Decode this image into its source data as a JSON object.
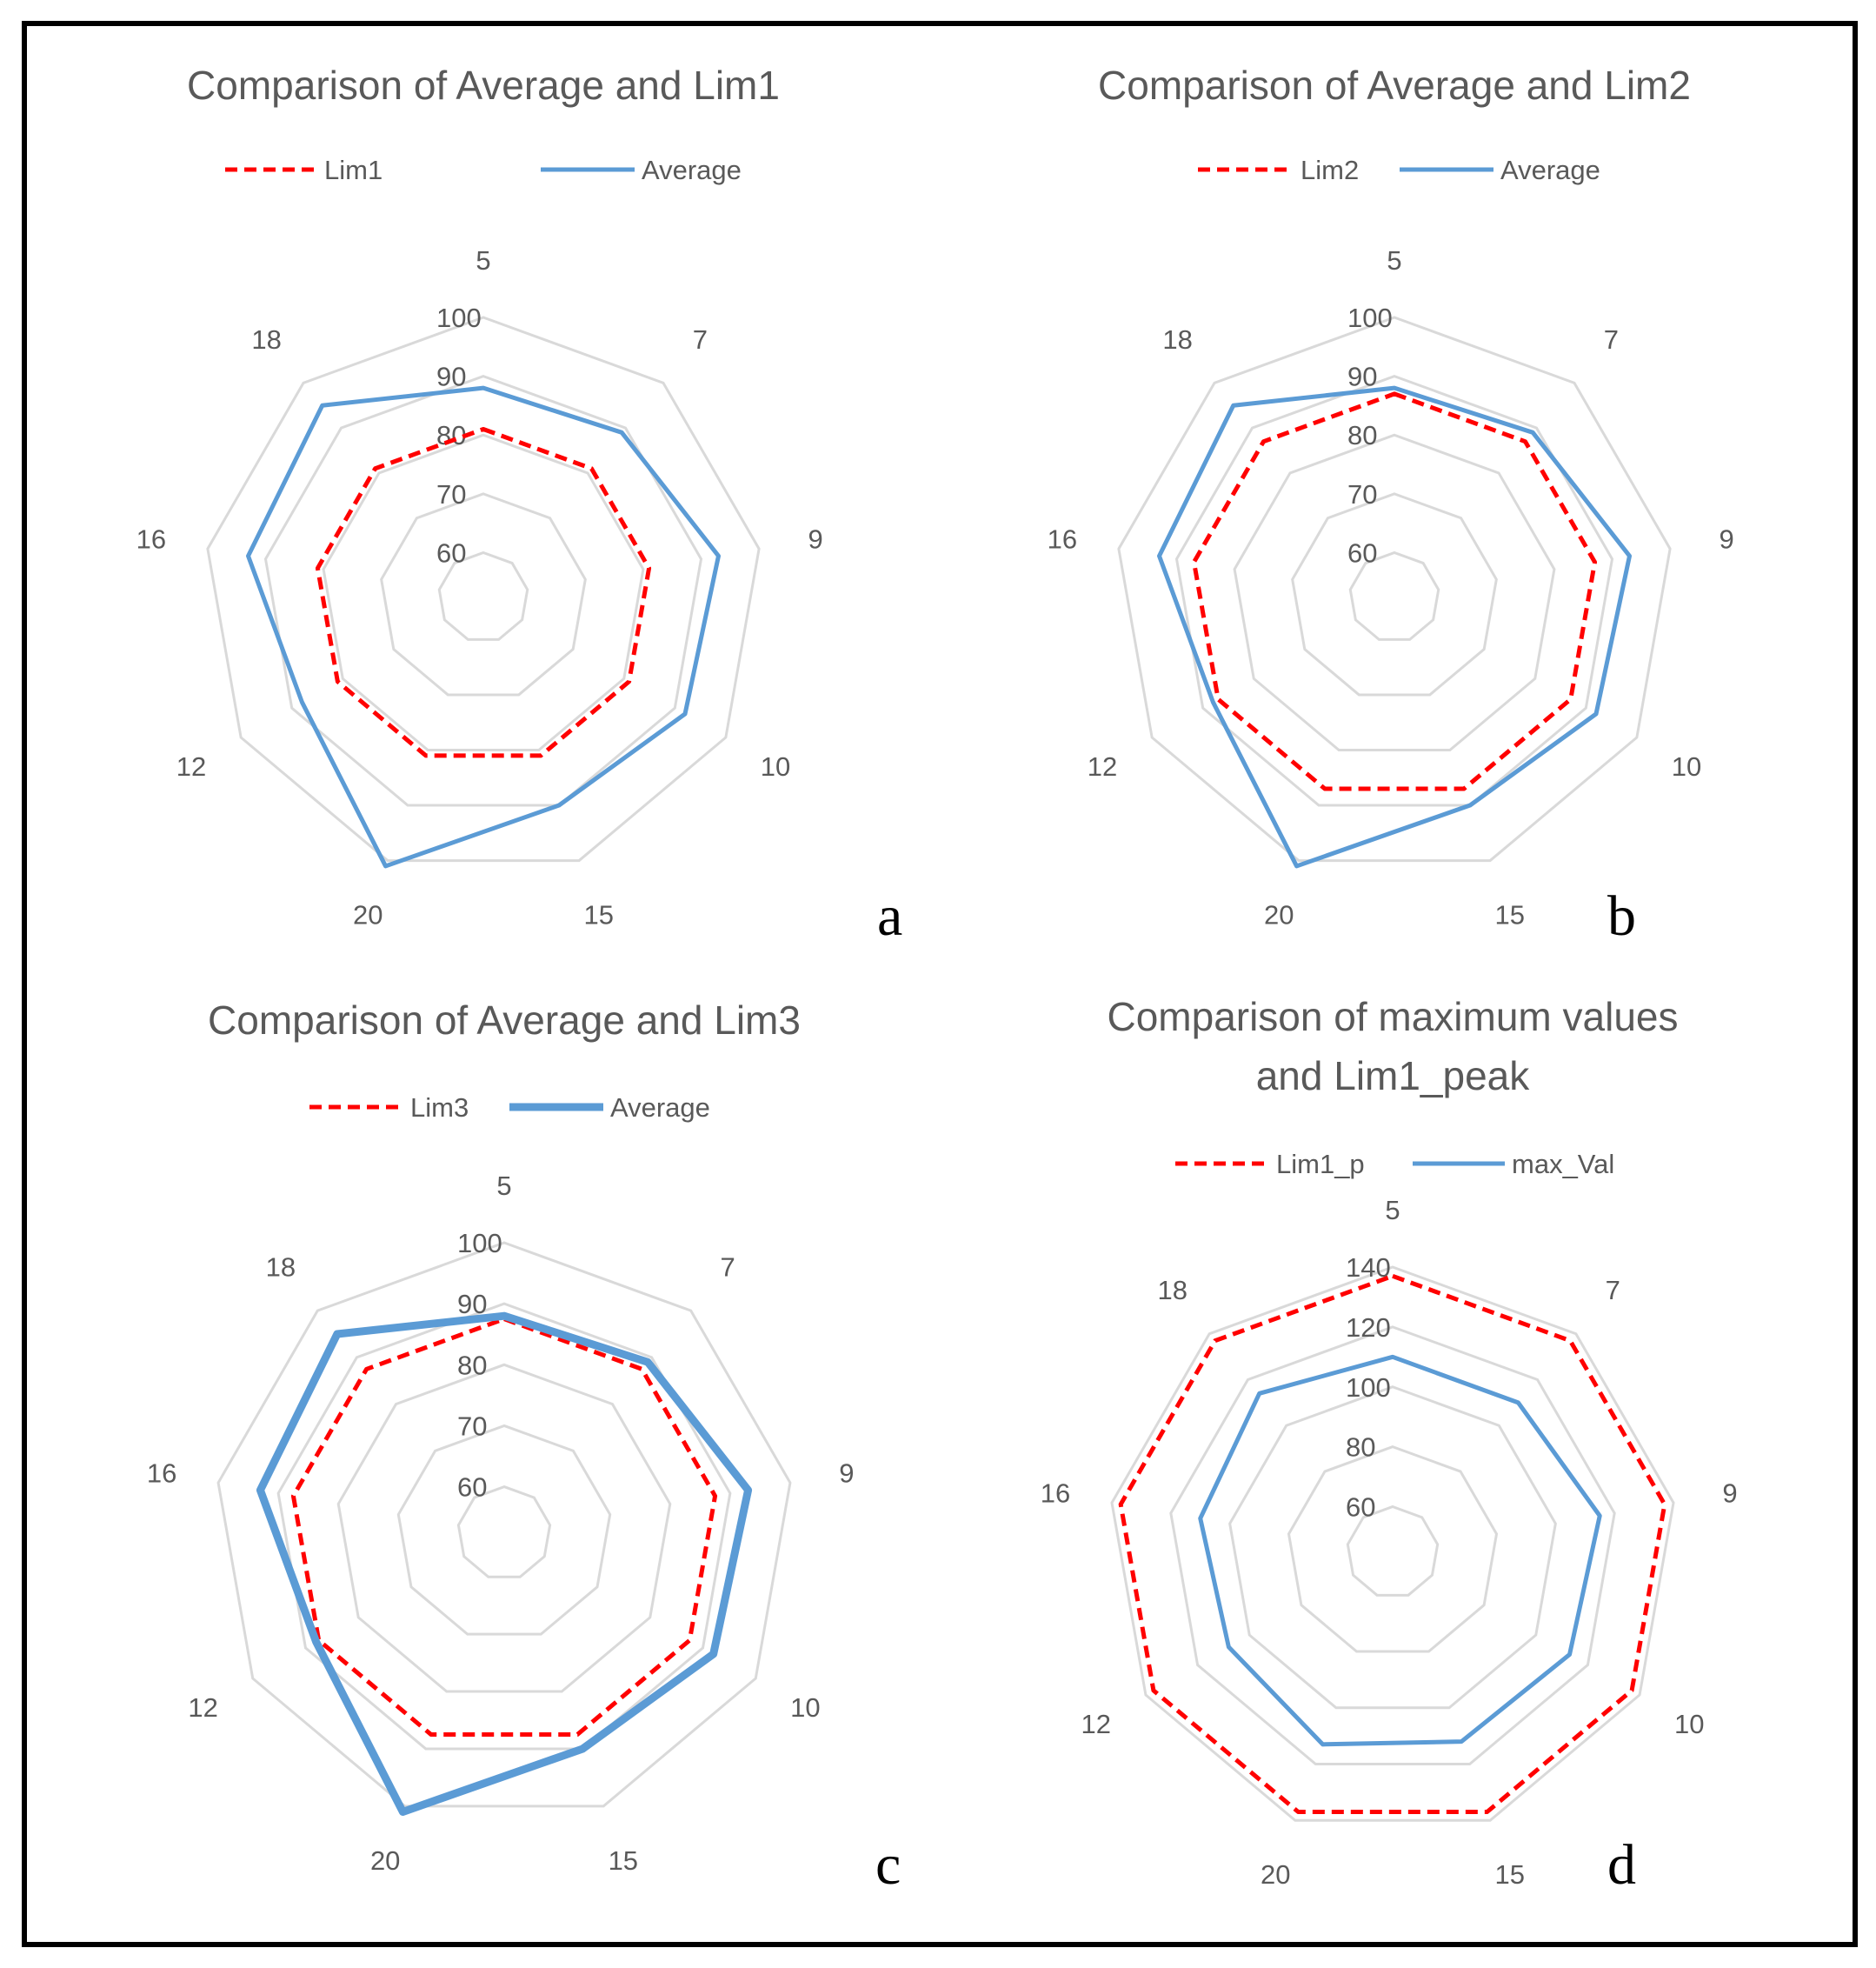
{
  "chart_data": [
    {
      "type": "radar",
      "title": "Comparison of Average and Lim1",
      "panel_label": "a",
      "categories": [
        "5",
        "7",
        "9",
        "10",
        "15",
        "20",
        "12",
        "16",
        "18"
      ],
      "axis": {
        "min": 60,
        "max": 100,
        "ticks": [
          "60",
          "70",
          "80",
          "90",
          "100"
        ]
      },
      "legend": [
        "Lim1",
        "Average"
      ],
      "series": [
        {
          "name": "Lim1",
          "color": "#ff0000",
          "style": "dashed",
          "values": [
            81,
            81,
            81,
            81,
            81,
            81,
            81,
            81,
            81
          ]
        },
        {
          "name": "Average",
          "color": "#5b9bd5",
          "style": "solid",
          "values": [
            88,
            89,
            93,
            92,
            90,
            101,
            88,
            93,
            95
          ]
        }
      ]
    },
    {
      "type": "radar",
      "title": "Comparison of Average and Lim2",
      "panel_label": "b",
      "categories": [
        "5",
        "7",
        "9",
        "10",
        "15",
        "20",
        "12",
        "16",
        "18"
      ],
      "axis": {
        "min": 60,
        "max": 100,
        "ticks": [
          "60",
          "70",
          "80",
          "90",
          "100"
        ]
      },
      "legend": [
        "Lim2",
        "Average"
      ],
      "series": [
        {
          "name": "Lim2",
          "color": "#ff0000",
          "style": "dashed",
          "values": [
            87,
            87,
            87,
            87,
            87,
            87,
            87,
            87,
            87
          ]
        },
        {
          "name": "Average",
          "color": "#5b9bd5",
          "style": "solid",
          "values": [
            88,
            89,
            93,
            92,
            90,
            101,
            88,
            93,
            95
          ]
        }
      ]
    },
    {
      "type": "radar",
      "title": "Comparison of Average and Lim3",
      "panel_label": "c",
      "categories": [
        "5",
        "7",
        "9",
        "10",
        "15",
        "20",
        "12",
        "16",
        "18"
      ],
      "axis": {
        "min": 60,
        "max": 100,
        "ticks": [
          "60",
          "70",
          "80",
          "90",
          "100"
        ]
      },
      "legend": [
        "Lim3",
        "Average"
      ],
      "series": [
        {
          "name": "Lim3",
          "color": "#ff0000",
          "style": "dashed",
          "values": [
            87.5,
            87.5,
            87.5,
            87.5,
            87.5,
            87.5,
            87.5,
            87.5,
            87.5
          ]
        },
        {
          "name": "Average",
          "color": "#5b9bd5",
          "style": "solid-thick",
          "values": [
            88,
            89,
            93,
            92,
            90,
            101,
            88,
            93,
            95
          ]
        }
      ]
    },
    {
      "type": "radar",
      "title": "Comparison of maximum values",
      "title_line2": "and Lim1_peak",
      "panel_label": "d",
      "categories": [
        "5",
        "7",
        "9",
        "10",
        "15",
        "20",
        "12",
        "16",
        "18"
      ],
      "axis": {
        "min": 60,
        "max": 140,
        "ticks": [
          "60",
          "80",
          "100",
          "120",
          "140"
        ]
      },
      "legend": [
        "Lim1_p",
        "max_Val"
      ],
      "series": [
        {
          "name": "Lim1_p",
          "color": "#ff0000",
          "style": "dashed",
          "values": [
            137,
            137,
            137,
            137,
            137,
            137,
            137,
            137,
            137
          ]
        },
        {
          "name": "max_Val",
          "color": "#5b9bd5",
          "style": "solid",
          "values": [
            110,
            110,
            115,
            113,
            112,
            113,
            108,
            110,
            114
          ]
        }
      ]
    }
  ]
}
